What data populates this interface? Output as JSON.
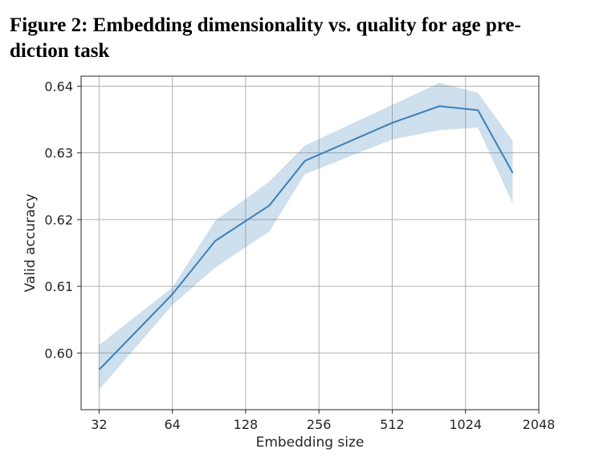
{
  "caption": {
    "line1": "Figure 2: Embedding dimensionality vs. quality for age pre-",
    "line2": "diction task"
  },
  "chart_data": {
    "type": "line",
    "title": "",
    "xlabel": "Embedding size",
    "ylabel": "Valid accuracy",
    "xscale": "log2",
    "xlim": [
      27,
      2048
    ],
    "ylim": [
      0.5915,
      0.6415
    ],
    "xticks": [
      32,
      64,
      128,
      256,
      512,
      1024,
      2048
    ],
    "xtick_labels": [
      "32",
      "64",
      "128",
      "256",
      "512",
      "1024",
      "2048"
    ],
    "yticks": [
      0.6,
      0.61,
      0.62,
      0.63,
      0.64
    ],
    "ytick_labels": [
      "0.60",
      "0.61",
      "0.62",
      "0.63",
      "0.64"
    ],
    "grid": true,
    "series": [
      {
        "x": [
          32,
          64,
          96,
          160,
          224,
          512,
          800,
          1152,
          1600
        ],
        "y": [
          0.5975,
          0.6088,
          0.6168,
          0.6221,
          0.6288,
          0.6345,
          0.637,
          0.6364,
          0.627
        ],
        "band_lower": [
          0.5945,
          0.6072,
          0.6128,
          0.6182,
          0.6268,
          0.632,
          0.6334,
          0.6338,
          0.6224
        ],
        "band_upper": [
          0.6012,
          0.6098,
          0.6198,
          0.6257,
          0.6311,
          0.6372,
          0.6405,
          0.639,
          0.6318
        ],
        "color": "#3b7fb6",
        "band_color": "#3b7fb6"
      }
    ]
  }
}
